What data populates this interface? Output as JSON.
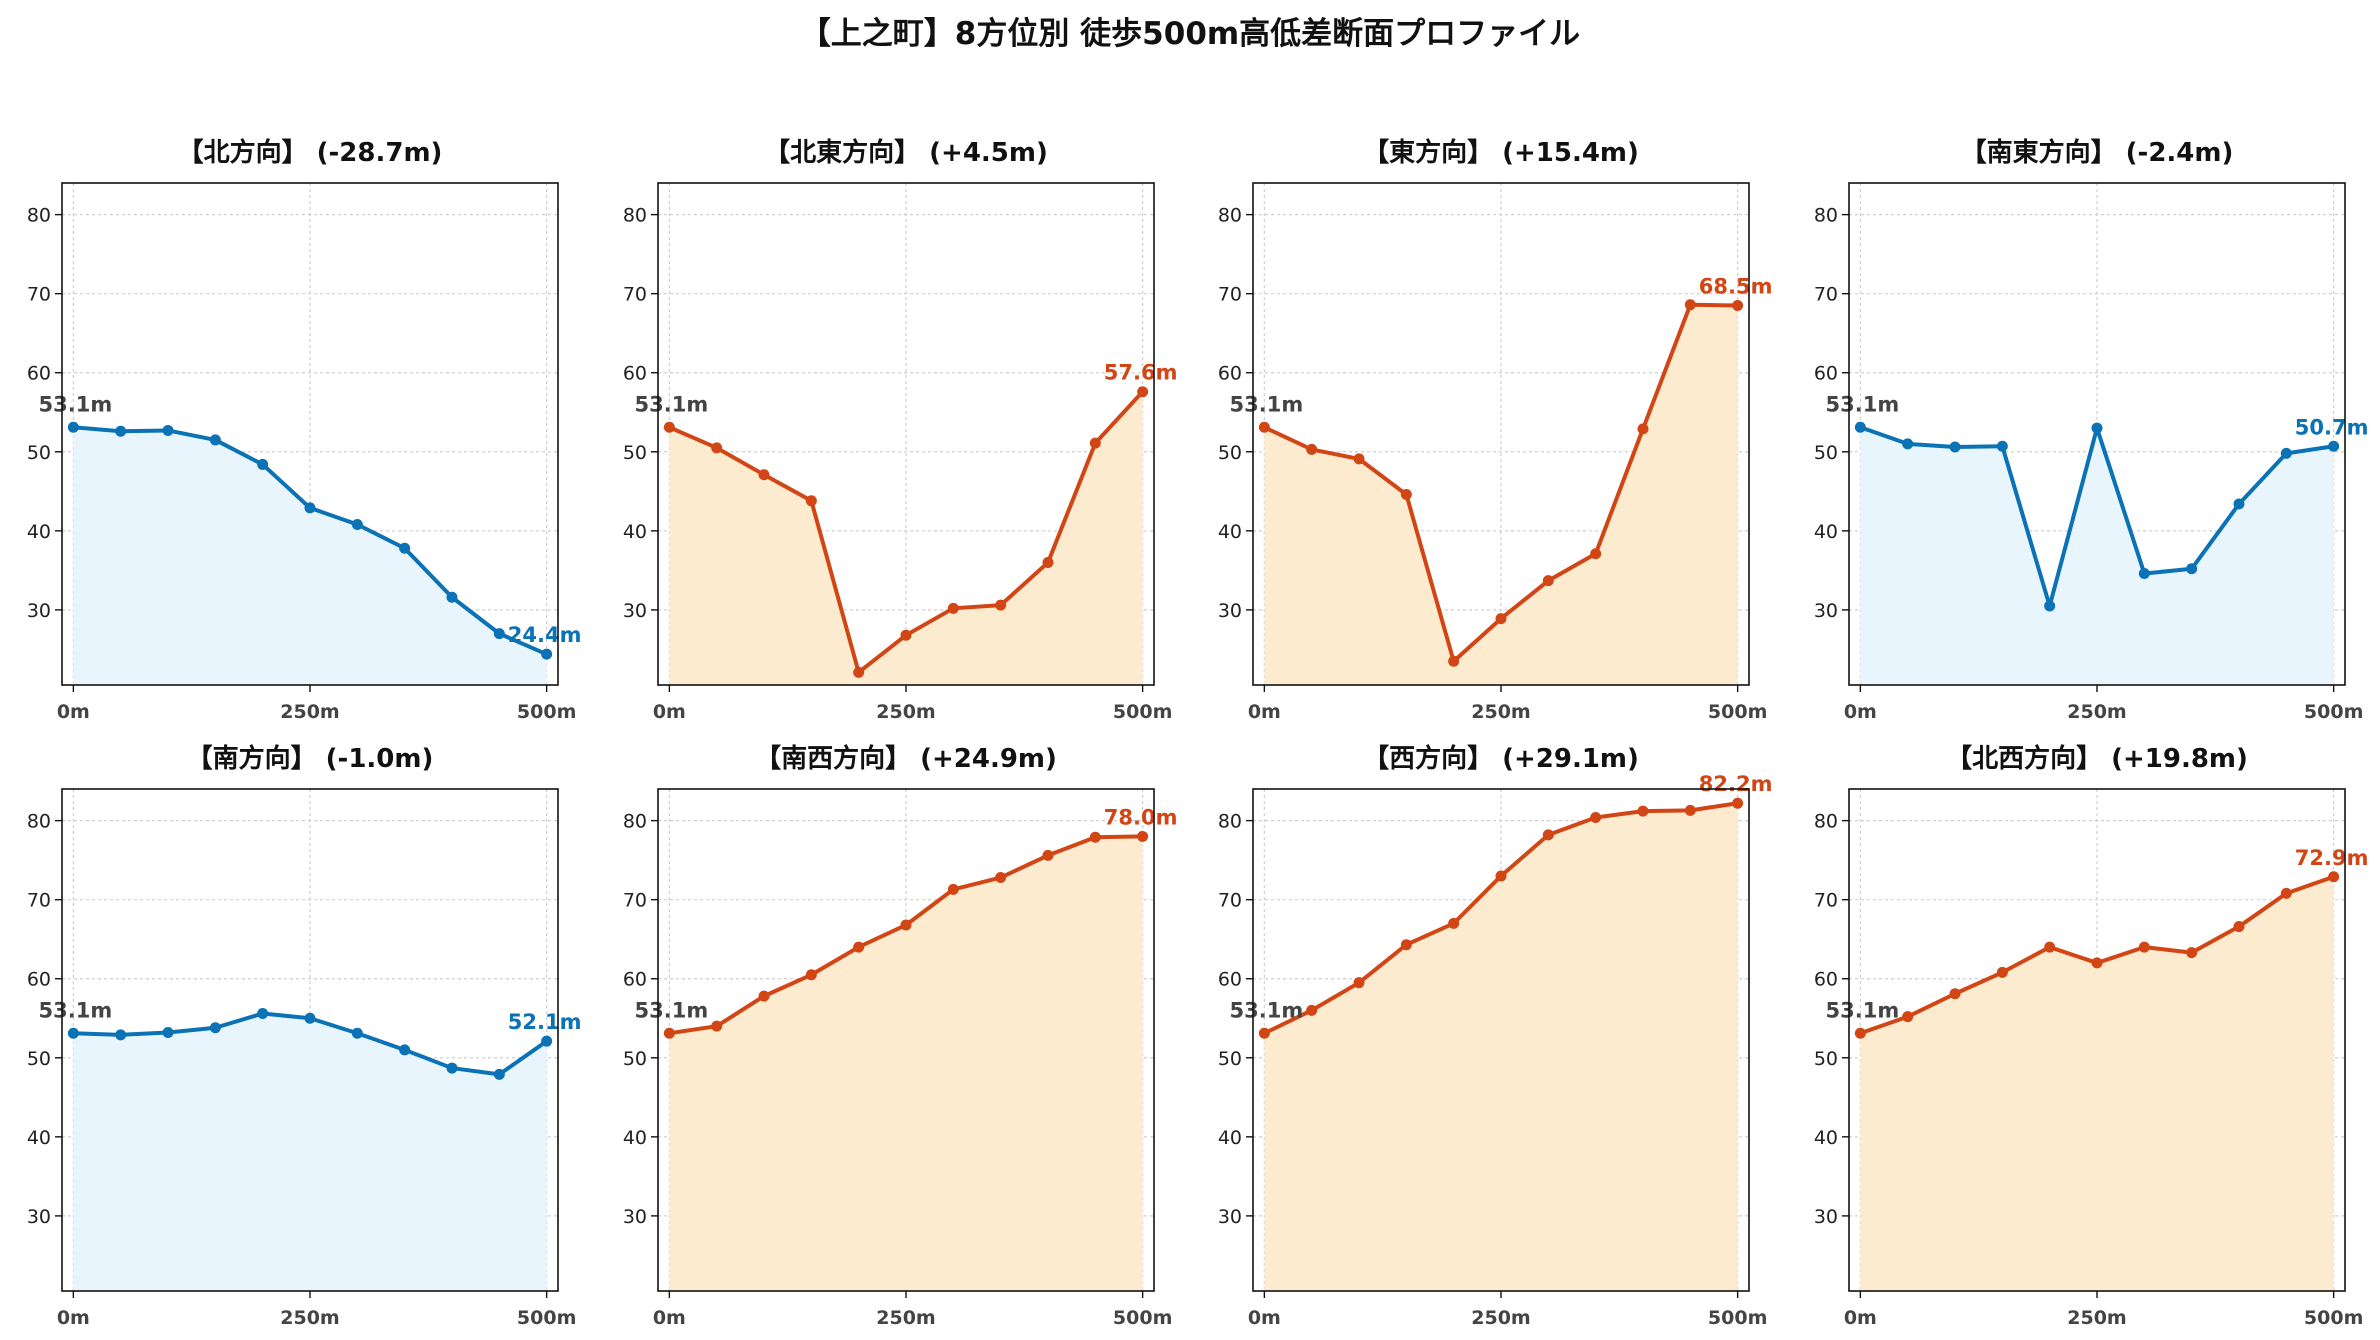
{
  "suptitle": "【上之町】8方位別 徒歩500m高低差断面プロファイル",
  "colors": {
    "up_line": "#d24515",
    "up_fill": "#fdebd0",
    "down_line": "#0a72b5",
    "down_fill": "#e9f5fc"
  },
  "chart_data": [
    {
      "type": "area",
      "title": "【北方向】 (-28.7m)",
      "trend": "down",
      "start_label": "53.1m",
      "end_label": "24.4m",
      "x": [
        0,
        50,
        100,
        150,
        200,
        250,
        300,
        350,
        400,
        450,
        500
      ],
      "y": [
        53.1,
        52.6,
        52.7,
        51.5,
        48.4,
        42.9,
        40.8,
        37.8,
        31.6,
        27.0,
        24.4
      ],
      "xticks": [
        "0m",
        "250m",
        "500m"
      ],
      "yticks": [
        30,
        40,
        50,
        60,
        70,
        80
      ],
      "ylim": [
        20.5,
        84
      ],
      "xlim": [
        -12,
        512
      ],
      "grid": true
    },
    {
      "type": "area",
      "title": "【北東方向】 (+4.5m)",
      "trend": "up",
      "start_label": "53.1m",
      "end_label": "57.6m",
      "x": [
        0,
        50,
        100,
        150,
        200,
        250,
        300,
        350,
        400,
        450,
        500
      ],
      "y": [
        53.1,
        50.5,
        47.1,
        43.8,
        22.1,
        26.8,
        30.2,
        30.6,
        36.0,
        51.1,
        57.6
      ],
      "xticks": [
        "0m",
        "250m",
        "500m"
      ],
      "yticks": [
        30,
        40,
        50,
        60,
        70,
        80
      ],
      "ylim": [
        20.5,
        84
      ],
      "xlim": [
        -12,
        512
      ],
      "grid": true
    },
    {
      "type": "area",
      "title": "【東方向】 (+15.4m)",
      "trend": "up",
      "start_label": "53.1m",
      "end_label": "68.5m",
      "x": [
        0,
        50,
        100,
        150,
        200,
        250,
        300,
        350,
        400,
        450,
        500
      ],
      "y": [
        53.1,
        50.3,
        49.1,
        44.6,
        23.5,
        28.9,
        33.7,
        37.1,
        52.9,
        68.6,
        68.5
      ],
      "xticks": [
        "0m",
        "250m",
        "500m"
      ],
      "yticks": [
        30,
        40,
        50,
        60,
        70,
        80
      ],
      "ylim": [
        20.5,
        84
      ],
      "xlim": [
        -12,
        512
      ],
      "grid": true
    },
    {
      "type": "area",
      "title": "【南東方向】 (-2.4m)",
      "trend": "down",
      "start_label": "53.1m",
      "end_label": "50.7m",
      "x": [
        0,
        50,
        100,
        150,
        200,
        250,
        300,
        350,
        400,
        450,
        500
      ],
      "y": [
        53.1,
        51.0,
        50.6,
        50.7,
        30.5,
        53.0,
        34.6,
        35.2,
        43.4,
        49.8,
        50.7
      ],
      "xticks": [
        "0m",
        "250m",
        "500m"
      ],
      "yticks": [
        30,
        40,
        50,
        60,
        70,
        80
      ],
      "ylim": [
        20.5,
        84
      ],
      "xlim": [
        -12,
        512
      ],
      "grid": true
    },
    {
      "type": "area",
      "title": "【南方向】 (-1.0m)",
      "trend": "down",
      "start_label": "53.1m",
      "end_label": "52.1m",
      "x": [
        0,
        50,
        100,
        150,
        200,
        250,
        300,
        350,
        400,
        450,
        500
      ],
      "y": [
        53.1,
        52.9,
        53.2,
        53.8,
        55.6,
        55.0,
        53.1,
        51.0,
        48.7,
        47.9,
        52.1
      ],
      "xticks": [
        "0m",
        "250m",
        "500m"
      ],
      "yticks": [
        30,
        40,
        50,
        60,
        70,
        80
      ],
      "ylim": [
        20.5,
        84
      ],
      "xlim": [
        -12,
        512
      ],
      "grid": true
    },
    {
      "type": "area",
      "title": "【南西方向】 (+24.9m)",
      "trend": "up",
      "start_label": "53.1m",
      "end_label": "78.0m",
      "x": [
        0,
        50,
        100,
        150,
        200,
        250,
        300,
        350,
        400,
        450,
        500
      ],
      "y": [
        53.1,
        54.0,
        57.8,
        60.5,
        64.0,
        66.8,
        71.3,
        72.8,
        75.6,
        77.9,
        78.0
      ],
      "xticks": [
        "0m",
        "250m",
        "500m"
      ],
      "yticks": [
        30,
        40,
        50,
        60,
        70,
        80
      ],
      "ylim": [
        20.5,
        84
      ],
      "xlim": [
        -12,
        512
      ],
      "grid": true
    },
    {
      "type": "area",
      "title": "【西方向】 (+29.1m)",
      "trend": "up",
      "start_label": "53.1m",
      "end_label": "82.2m",
      "x": [
        0,
        50,
        100,
        150,
        200,
        250,
        300,
        350,
        400,
        450,
        500
      ],
      "y": [
        53.1,
        56.0,
        59.5,
        64.3,
        67.0,
        73.0,
        78.2,
        80.4,
        81.2,
        81.3,
        82.2
      ],
      "xticks": [
        "0m",
        "250m",
        "500m"
      ],
      "yticks": [
        30,
        40,
        50,
        60,
        70,
        80
      ],
      "ylim": [
        20.5,
        84
      ],
      "xlim": [
        -12,
        512
      ],
      "grid": true
    },
    {
      "type": "area",
      "title": "【北西方向】 (+19.8m)",
      "trend": "up",
      "start_label": "53.1m",
      "end_label": "72.9m",
      "x": [
        0,
        50,
        100,
        150,
        200,
        250,
        300,
        350,
        400,
        450,
        500
      ],
      "y": [
        53.1,
        55.2,
        58.1,
        60.8,
        64.0,
        62.0,
        64.0,
        63.3,
        66.6,
        70.8,
        72.9
      ],
      "xticks": [
        "0m",
        "250m",
        "500m"
      ],
      "yticks": [
        30,
        40,
        50,
        60,
        70,
        80
      ],
      "ylim": [
        20.5,
        84
      ],
      "xlim": [
        -12,
        512
      ],
      "grid": true
    }
  ]
}
